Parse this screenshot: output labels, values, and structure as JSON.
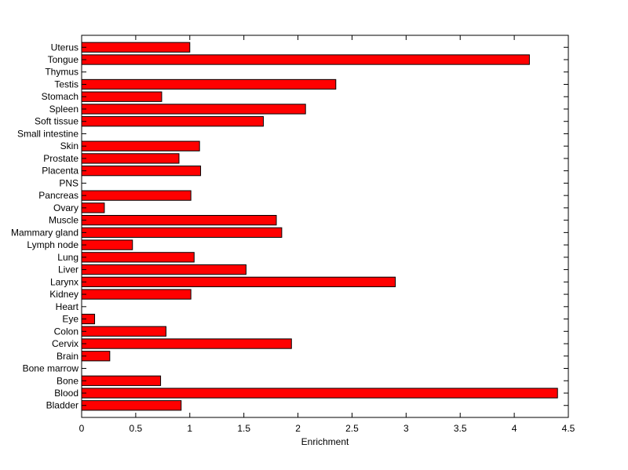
{
  "chart_data": {
    "type": "bar",
    "orientation": "horizontal",
    "title": "",
    "xlabel": "Enrichment",
    "ylabel": "",
    "xlim": [
      0,
      4.5
    ],
    "xticks": [
      "0",
      "0.5",
      "1",
      "1.5",
      "2",
      "2.5",
      "3",
      "3.5",
      "4",
      "4.5"
    ],
    "grid": false,
    "bar_color": "#ff0000",
    "edge_color": "#000000",
    "categories": [
      "Bladder",
      "Blood",
      "Bone",
      "Bone marrow",
      "Brain",
      "Cervix",
      "Colon",
      "Eye",
      "Heart",
      "Kidney",
      "Larynx",
      "Liver",
      "Lung",
      "Lymph node",
      "Mammary gland",
      "Muscle",
      "Ovary",
      "Pancreas",
      "PNS",
      "Placenta",
      "Prostate",
      "Skin",
      "Small intestine",
      "Soft tissue",
      "Spleen",
      "Stomach",
      "Testis",
      "Thymus",
      "Tongue",
      "Uterus"
    ],
    "values": [
      0.92,
      4.4,
      0.73,
      0,
      0.26,
      1.94,
      0.78,
      0.12,
      0,
      1.01,
      2.9,
      1.52,
      1.04,
      0.47,
      1.85,
      1.8,
      0.21,
      1.01,
      0,
      1.1,
      0.9,
      1.09,
      0,
      1.68,
      2.07,
      0.74,
      2.35,
      0,
      4.14,
      1.0
    ]
  }
}
